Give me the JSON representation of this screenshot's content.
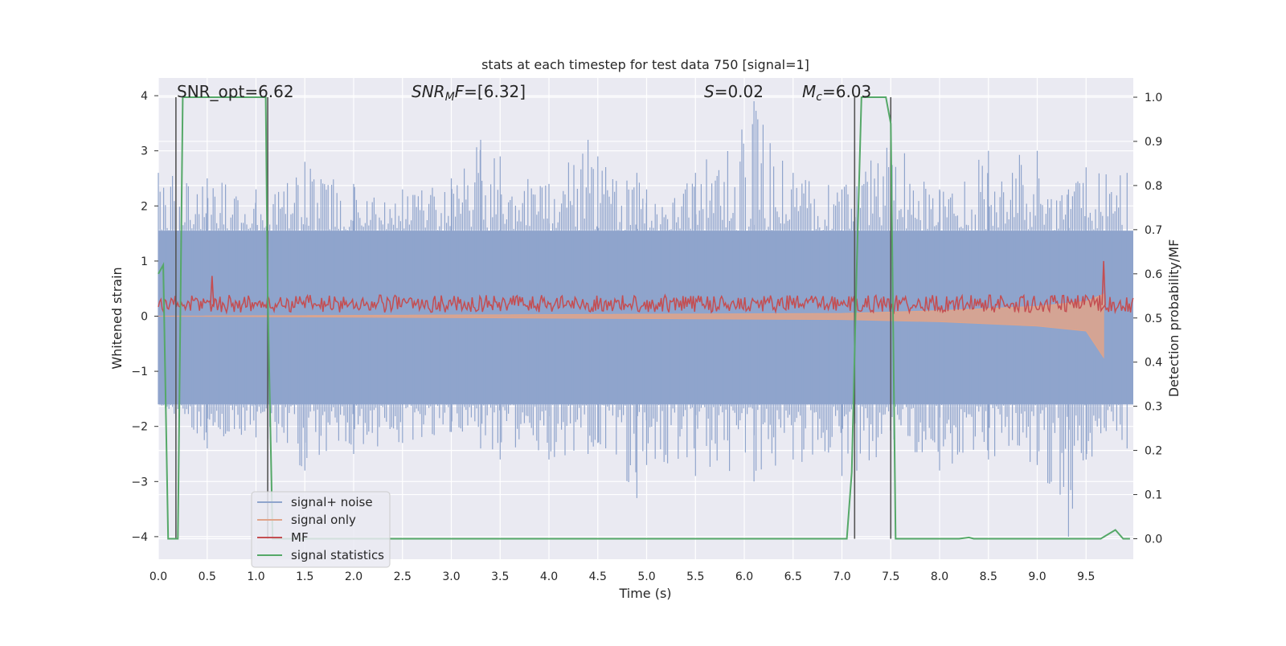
{
  "chart_data": {
    "type": "line",
    "title": "stats at each timestep for test data 750 [signal=1]",
    "xlabel": "Time (s)",
    "ylabel_left": "Whitened strain",
    "ylabel_right": "Detection probability/MF",
    "xlim": [
      0,
      10
    ],
    "ylim_left": [
      -4.3,
      4.4
    ],
    "ylim_right": [
      -0.045,
      1.045
    ],
    "xticks": [
      "0.0",
      "0.5",
      "1.0",
      "1.5",
      "2.0",
      "2.5",
      "3.0",
      "3.5",
      "4.0",
      "4.5",
      "5.0",
      "5.5",
      "6.0",
      "6.5",
      "7.0",
      "7.5",
      "8.0",
      "8.5",
      "9.0",
      "9.5"
    ],
    "yticks_left": [
      "4",
      "3",
      "2",
      "1",
      "0",
      "−1",
      "−2",
      "−3",
      "−4"
    ],
    "yticks_right": [
      "1.0",
      "0.9",
      "0.8",
      "0.7",
      "0.6",
      "0.5",
      "0.4",
      "0.3",
      "0.2",
      "0.1",
      "0.0"
    ],
    "grid": true,
    "legend_position": "lower-left",
    "annotations": {
      "snr_opt": "SNR_opt=6.62",
      "snr_mf_sym": "SNR",
      "snr_mf_sub": "M",
      "snr_mf_tail": "F",
      "snr_mf_value": "=[6.32]",
      "s_sym": "S",
      "s_value": "=0.02",
      "mc_sym": "M",
      "mc_sub": "c",
      "mc_value": "=6.03"
    },
    "vertical_markers": [
      0.18,
      1.12,
      7.13,
      7.5
    ],
    "series": [
      {
        "name": "signal+ noise",
        "axis": "left",
        "color": "#8fa4cc",
        "envelope_points": [
          [
            0.0,
            -1.6,
            2.6
          ],
          [
            0.5,
            -2.4,
            2.5
          ],
          [
            1.0,
            -2.2,
            2.3
          ],
          [
            1.5,
            -2.8,
            2.8
          ],
          [
            2.0,
            -2.5,
            2.4
          ],
          [
            2.5,
            -2.3,
            2.3
          ],
          [
            3.0,
            -2.1,
            2.5
          ],
          [
            3.3,
            -2.4,
            3.2
          ],
          [
            3.5,
            -2.6,
            2.9
          ],
          [
            4.0,
            -2.6,
            2.4
          ],
          [
            4.4,
            -2.5,
            3.2
          ],
          [
            4.5,
            -2.3,
            2.9
          ],
          [
            4.9,
            -3.3,
            2.6
          ],
          [
            5.0,
            -2.7,
            2.3
          ],
          [
            5.5,
            -2.9,
            2.6
          ],
          [
            6.1,
            -3.0,
            3.9
          ],
          [
            6.5,
            -2.6,
            2.6
          ],
          [
            7.0,
            -2.9,
            2.3
          ],
          [
            7.5,
            -2.6,
            3.3
          ],
          [
            8.0,
            -2.8,
            2.3
          ],
          [
            8.5,
            -2.6,
            3.0
          ],
          [
            9.0,
            -2.7,
            3.0
          ],
          [
            9.32,
            -4.0,
            2.3
          ],
          [
            9.5,
            -2.6,
            2.7
          ],
          [
            9.92,
            -2.4,
            2.6
          ]
        ],
        "dense_band": [
          -1.6,
          1.55
        ]
      },
      {
        "name": "signal only",
        "axis": "left",
        "color": "#e0a48a",
        "envelope_points": [
          [
            0.0,
            0.0,
            0.0
          ],
          [
            7.0,
            -0.06,
            0.05
          ],
          [
            8.0,
            -0.1,
            0.1
          ],
          [
            9.0,
            -0.18,
            0.18
          ],
          [
            9.5,
            -0.27,
            0.27
          ],
          [
            9.68,
            -0.75,
            0.4
          ]
        ]
      },
      {
        "name": "MF",
        "axis": "left",
        "color": "#c44e52",
        "band": [
          0.0,
          0.45
        ],
        "peaks": [
          [
            0.55,
            0.73
          ],
          [
            9.68,
            1.0
          ]
        ]
      },
      {
        "name": "signal statistics",
        "axis": "right",
        "color": "#55a868",
        "x": [
          0.0,
          0.05,
          0.1,
          0.15,
          0.2,
          0.25,
          0.3,
          1.1,
          1.12,
          1.17,
          1.2,
          7.05,
          7.1,
          7.15,
          7.2,
          7.45,
          7.5,
          7.55,
          7.6,
          8.2,
          8.3,
          8.35,
          8.4,
          9.5,
          9.65,
          9.8,
          9.88,
          9.95
        ],
        "y": [
          0.6,
          0.62,
          0.0,
          0.0,
          0.0,
          1.0,
          1.0,
          1.0,
          0.55,
          0.0,
          0.0,
          0.0,
          0.15,
          0.6,
          1.0,
          1.0,
          0.94,
          0.0,
          0.0,
          0.0,
          0.003,
          0.0,
          0.0,
          0.0,
          0.0,
          0.02,
          0.0,
          0.0
        ]
      }
    ]
  }
}
